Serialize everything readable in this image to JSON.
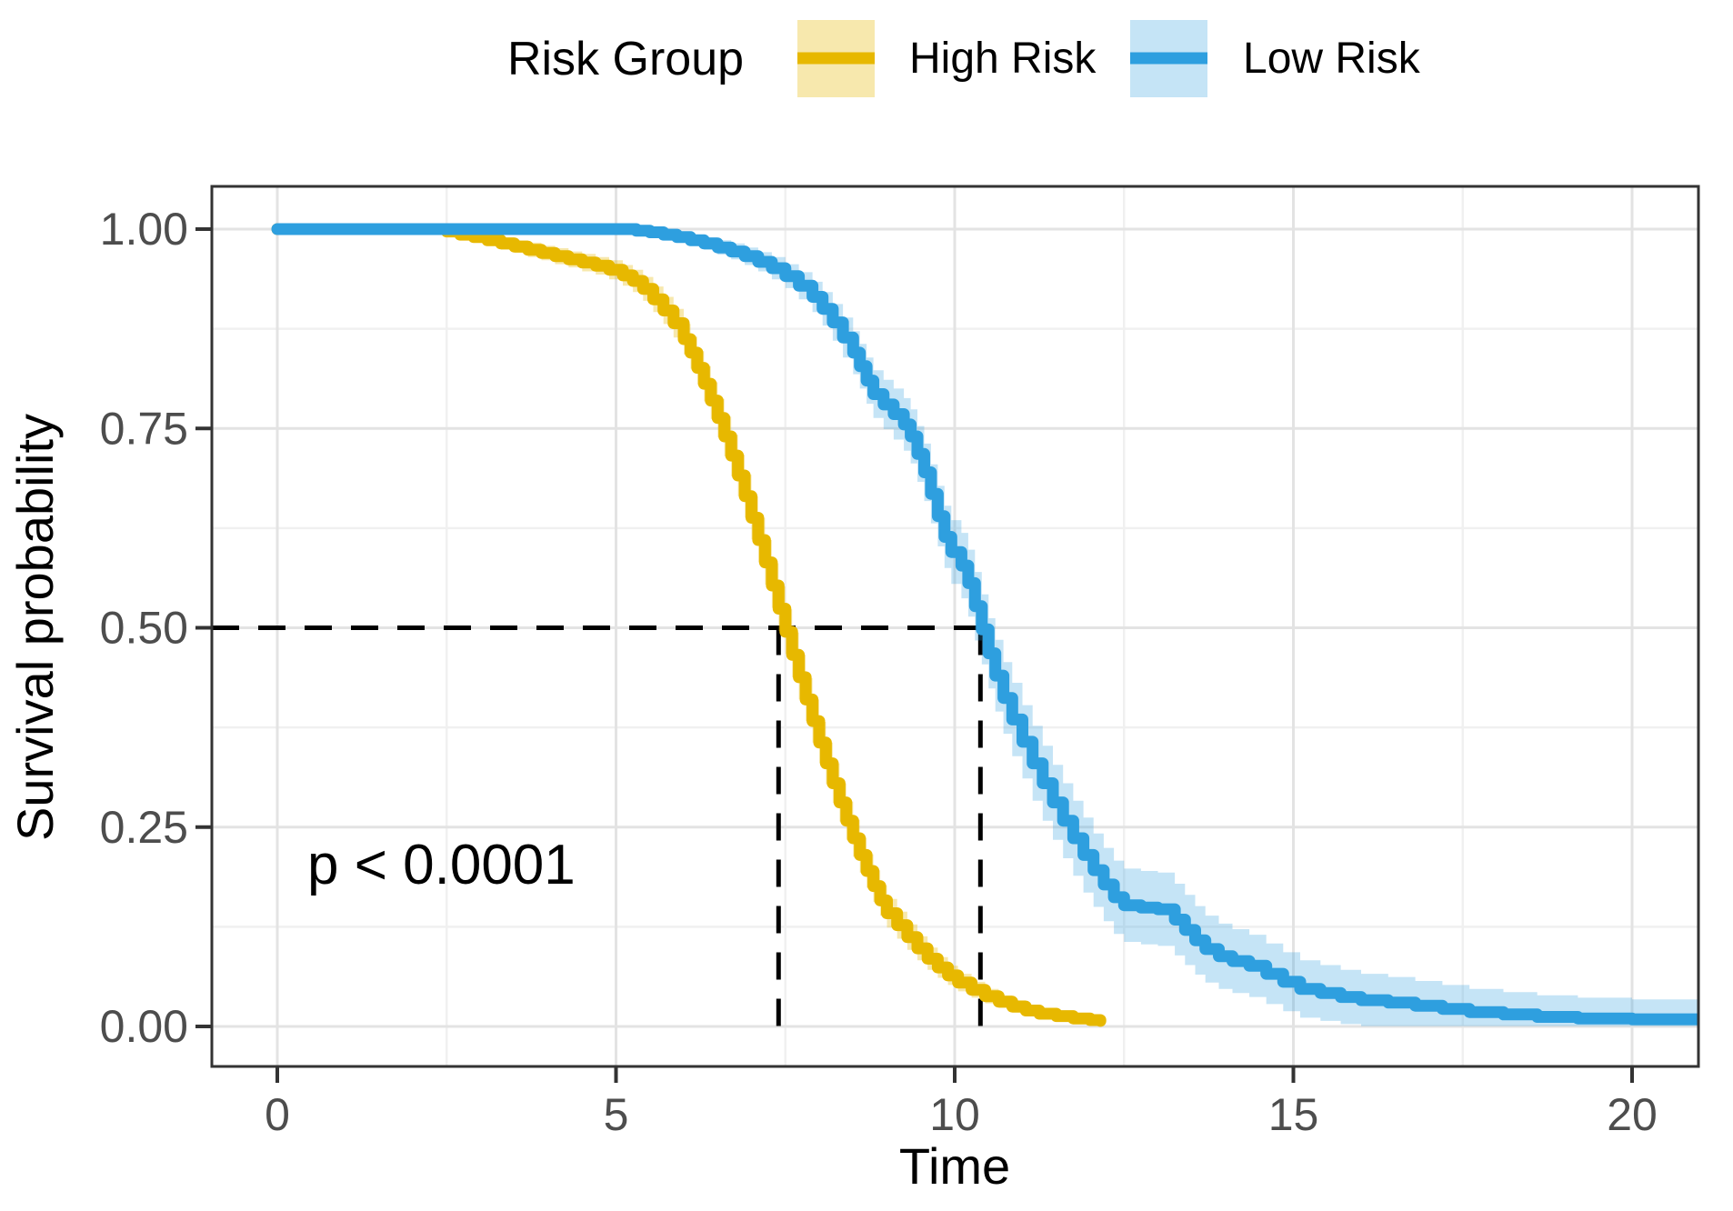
{
  "chart_data": {
    "type": "line",
    "subtype": "kaplan-meier-survival",
    "title": "",
    "xlabel": "Time",
    "ylabel": "Survival probability",
    "annotation": {
      "text": "p < 0.0001"
    },
    "legend": {
      "title": "Risk Group",
      "position": "top",
      "entries": [
        {
          "label": "High Risk",
          "color": "#E7B800",
          "band_color": "rgba(231,184,0,0.32)"
        },
        {
          "label": "Low Risk",
          "color": "#2E9FDF",
          "band_color": "rgba(46,159,223,0.28)"
        }
      ]
    },
    "axes": {
      "xlim": [
        -0.97,
        21.0
      ],
      "ylim": [
        -0.05,
        1.05
      ],
      "x_major_ticks": [
        0,
        5,
        10,
        15,
        20
      ],
      "x_major_labels": [
        "0",
        "5",
        "10",
        "15",
        "20"
      ],
      "x_minor_ticks": [
        2.5,
        7.5,
        12.5,
        17.5
      ],
      "y_major_ticks": [
        1.0,
        0.75,
        0.5,
        0.25,
        0.0
      ],
      "y_major_labels": [
        "1.00",
        "0.75",
        "0.50",
        "0.25",
        "0.00"
      ],
      "y_minor_ticks": [
        0.875,
        0.625,
        0.375,
        0.125
      ],
      "grid": "major-and-minor"
    },
    "medians": {
      "survival_probability": 0.5,
      "high_risk_median_time": 7.4,
      "low_risk_median_time": 10.38,
      "line_style": "dashed-black"
    },
    "series": [
      {
        "name": "High Risk",
        "color": "#E7B800",
        "band_color": "rgba(231,184,0,0.32)",
        "points": [
          [
            0,
            1.0,
            0
          ],
          [
            2.5,
            0.997,
            0.004
          ],
          [
            2.7,
            0.993,
            0.005
          ],
          [
            2.9,
            0.99,
            0.006
          ],
          [
            3.1,
            0.986,
            0.007
          ],
          [
            3.3,
            0.982,
            0.008
          ],
          [
            3.5,
            0.978,
            0.008
          ],
          [
            3.7,
            0.974,
            0.009
          ],
          [
            3.9,
            0.97,
            0.009
          ],
          [
            4.1,
            0.966,
            0.01
          ],
          [
            4.3,
            0.962,
            0.01
          ],
          [
            4.5,
            0.958,
            0.011
          ],
          [
            4.7,
            0.954,
            0.011
          ],
          [
            4.9,
            0.949,
            0.012
          ],
          [
            5.1,
            0.942,
            0.013
          ],
          [
            5.25,
            0.935,
            0.014
          ],
          [
            5.4,
            0.925,
            0.015
          ],
          [
            5.55,
            0.912,
            0.016
          ],
          [
            5.7,
            0.898,
            0.017
          ],
          [
            5.85,
            0.882,
            0.018
          ],
          [
            6.0,
            0.862,
            0.019
          ],
          [
            6.1,
            0.845,
            0.02
          ],
          [
            6.2,
            0.826,
            0.021
          ],
          [
            6.3,
            0.806,
            0.022
          ],
          [
            6.4,
            0.785,
            0.023
          ],
          [
            6.5,
            0.763,
            0.024
          ],
          [
            6.6,
            0.74,
            0.025
          ],
          [
            6.7,
            0.716,
            0.026
          ],
          [
            6.8,
            0.691,
            0.026
          ],
          [
            6.9,
            0.665,
            0.027
          ],
          [
            7.0,
            0.638,
            0.027
          ],
          [
            7.1,
            0.61,
            0.028
          ],
          [
            7.2,
            0.582,
            0.028
          ],
          [
            7.3,
            0.553,
            0.028
          ],
          [
            7.4,
            0.524,
            0.028
          ],
          [
            7.5,
            0.495,
            0.028
          ],
          [
            7.6,
            0.466,
            0.028
          ],
          [
            7.7,
            0.438,
            0.028
          ],
          [
            7.8,
            0.41,
            0.027
          ],
          [
            7.9,
            0.383,
            0.027
          ],
          [
            8.0,
            0.356,
            0.026
          ],
          [
            8.1,
            0.33,
            0.026
          ],
          [
            8.2,
            0.305,
            0.025
          ],
          [
            8.3,
            0.281,
            0.024
          ],
          [
            8.4,
            0.258,
            0.024
          ],
          [
            8.5,
            0.236,
            0.023
          ],
          [
            8.6,
            0.215,
            0.022
          ],
          [
            8.7,
            0.195,
            0.021
          ],
          [
            8.8,
            0.176,
            0.02
          ],
          [
            8.9,
            0.158,
            0.019
          ],
          [
            9.0,
            0.142,
            0.018
          ],
          [
            9.15,
            0.127,
            0.017
          ],
          [
            9.3,
            0.112,
            0.016
          ],
          [
            9.45,
            0.098,
            0.015
          ],
          [
            9.6,
            0.085,
            0.014
          ],
          [
            9.75,
            0.074,
            0.013
          ],
          [
            9.9,
            0.064,
            0.012
          ],
          [
            10.05,
            0.055,
            0.011
          ],
          [
            10.25,
            0.046,
            0.01
          ],
          [
            10.45,
            0.038,
            0.009
          ],
          [
            10.65,
            0.031,
            0.008
          ],
          [
            10.85,
            0.025,
            0.008
          ],
          [
            11.05,
            0.02,
            0.007
          ],
          [
            11.25,
            0.016,
            0.006
          ],
          [
            11.5,
            0.013,
            0.006
          ],
          [
            11.75,
            0.01,
            0.005
          ],
          [
            12.0,
            0.008,
            0.005
          ],
          [
            12.15,
            0.007,
            0.005
          ]
        ]
      },
      {
        "name": "Low Risk",
        "color": "#2E9FDF",
        "band_color": "rgba(46,159,223,0.28)",
        "points": [
          [
            0,
            1.0,
            0
          ],
          [
            5.3,
            0.998,
            0.003
          ],
          [
            5.5,
            0.996,
            0.004
          ],
          [
            5.7,
            0.993,
            0.005
          ],
          [
            5.9,
            0.99,
            0.006
          ],
          [
            6.1,
            0.986,
            0.007
          ],
          [
            6.3,
            0.982,
            0.008
          ],
          [
            6.5,
            0.977,
            0.009
          ],
          [
            6.7,
            0.972,
            0.01
          ],
          [
            6.9,
            0.966,
            0.011
          ],
          [
            7.1,
            0.959,
            0.012
          ],
          [
            7.3,
            0.951,
            0.014
          ],
          [
            7.5,
            0.941,
            0.015
          ],
          [
            7.7,
            0.929,
            0.017
          ],
          [
            7.9,
            0.915,
            0.019
          ],
          [
            8.05,
            0.9,
            0.021
          ],
          [
            8.2,
            0.883,
            0.023
          ],
          [
            8.35,
            0.864,
            0.025
          ],
          [
            8.5,
            0.845,
            0.027
          ],
          [
            8.6,
            0.828,
            0.028
          ],
          [
            8.7,
            0.81,
            0.029
          ],
          [
            8.8,
            0.793,
            0.03
          ],
          [
            8.95,
            0.78,
            0.031
          ],
          [
            9.1,
            0.768,
            0.032
          ],
          [
            9.25,
            0.755,
            0.033
          ],
          [
            9.35,
            0.74,
            0.034
          ],
          [
            9.45,
            0.718,
            0.035
          ],
          [
            9.55,
            0.695,
            0.036
          ],
          [
            9.65,
            0.668,
            0.037
          ],
          [
            9.75,
            0.64,
            0.038
          ],
          [
            9.85,
            0.614,
            0.039
          ],
          [
            9.95,
            0.595,
            0.04
          ],
          [
            10.1,
            0.578,
            0.041
          ],
          [
            10.2,
            0.556,
            0.042
          ],
          [
            10.3,
            0.527,
            0.043
          ],
          [
            10.4,
            0.498,
            0.044
          ],
          [
            10.5,
            0.468,
            0.044
          ],
          [
            10.6,
            0.44,
            0.045
          ],
          [
            10.72,
            0.412,
            0.045
          ],
          [
            10.85,
            0.385,
            0.046
          ],
          [
            11.0,
            0.357,
            0.046
          ],
          [
            11.15,
            0.33,
            0.047
          ],
          [
            11.3,
            0.305,
            0.047
          ],
          [
            11.45,
            0.281,
            0.047
          ],
          [
            11.6,
            0.258,
            0.047
          ],
          [
            11.75,
            0.236,
            0.047
          ],
          [
            11.9,
            0.215,
            0.047
          ],
          [
            12.05,
            0.196,
            0.046
          ],
          [
            12.2,
            0.178,
            0.046
          ],
          [
            12.35,
            0.162,
            0.046
          ],
          [
            12.5,
            0.152,
            0.046
          ],
          [
            12.75,
            0.149,
            0.046
          ],
          [
            13.0,
            0.147,
            0.046
          ],
          [
            13.25,
            0.134,
            0.045
          ],
          [
            13.4,
            0.121,
            0.044
          ],
          [
            13.55,
            0.108,
            0.043
          ],
          [
            13.7,
            0.097,
            0.042
          ],
          [
            13.9,
            0.088,
            0.041
          ],
          [
            14.1,
            0.082,
            0.04
          ],
          [
            14.35,
            0.076,
            0.039
          ],
          [
            14.6,
            0.066,
            0.038
          ],
          [
            14.85,
            0.056,
            0.037
          ],
          [
            15.1,
            0.047,
            0.036
          ],
          [
            15.4,
            0.042,
            0.035
          ],
          [
            15.7,
            0.037,
            0.034
          ],
          [
            16.0,
            0.033,
            0.033
          ],
          [
            16.4,
            0.03,
            0.032
          ],
          [
            16.8,
            0.026,
            0.031
          ],
          [
            17.2,
            0.022,
            0.03
          ],
          [
            17.6,
            0.018,
            0.029
          ],
          [
            18.1,
            0.015,
            0.028
          ],
          [
            18.6,
            0.012,
            0.027
          ],
          [
            19.2,
            0.01,
            0.026
          ],
          [
            20.0,
            0.009,
            0.025
          ],
          [
            21.0,
            0.008,
            0.025
          ]
        ]
      }
    ],
    "colors": {
      "panel_border": "#333333",
      "major_grid": "#e3e3e3",
      "minor_grid": "#f0f0f0",
      "tick_mark": "#333333",
      "tick_label": "#4d4d4d",
      "dashed_reference": "#000000",
      "background": "#ffffff"
    }
  }
}
